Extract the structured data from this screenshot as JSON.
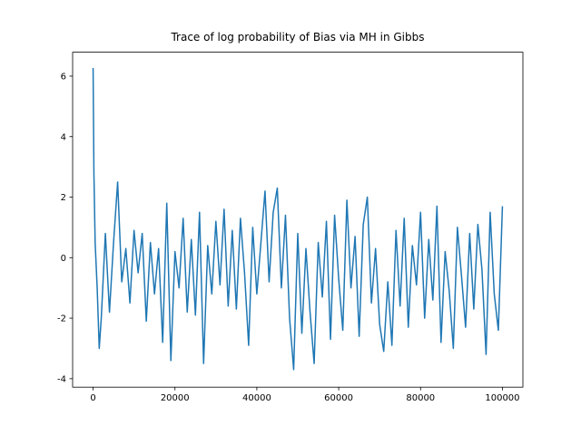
{
  "chart_data": {
    "type": "line",
    "title": "Trace of log probability of Bias via MH in Gibbs",
    "x": [
      0,
      200,
      500,
      1000,
      1500,
      2000,
      3000,
      4000,
      5000,
      6000,
      7000,
      8000,
      9000,
      10000,
      11000,
      12000,
      13000,
      14000,
      15000,
      16000,
      17000,
      18000,
      19000,
      20000,
      21000,
      22000,
      23000,
      24000,
      25000,
      26000,
      27000,
      28000,
      29000,
      30000,
      31000,
      32000,
      33000,
      34000,
      35000,
      36000,
      37000,
      38000,
      39000,
      40000,
      41000,
      42000,
      43000,
      44000,
      45000,
      46000,
      47000,
      48000,
      49000,
      50000,
      51000,
      52000,
      53000,
      54000,
      55000,
      56000,
      57000,
      58000,
      59000,
      60000,
      61000,
      62000,
      63000,
      64000,
      65000,
      66000,
      67000,
      68000,
      69000,
      70000,
      71000,
      72000,
      73000,
      74000,
      75000,
      76000,
      77000,
      78000,
      79000,
      80000,
      81000,
      82000,
      83000,
      84000,
      85000,
      86000,
      87000,
      88000,
      89000,
      90000,
      91000,
      92000,
      93000,
      94000,
      95000,
      96000,
      97000,
      98000,
      99000,
      100000
    ],
    "values": [
      6.27,
      2.8,
      0.5,
      -1.0,
      -3.0,
      -2.0,
      0.8,
      -1.8,
      0.5,
      2.5,
      -0.8,
      0.3,
      -1.5,
      0.9,
      -0.5,
      0.8,
      -2.1,
      0.5,
      -1.2,
      0.3,
      -2.8,
      1.8,
      -3.4,
      0.2,
      -1.0,
      1.3,
      -1.8,
      0.6,
      -1.9,
      1.5,
      -3.5,
      0.4,
      -1.2,
      1.2,
      -0.9,
      1.6,
      -1.6,
      0.9,
      -1.7,
      1.3,
      -0.5,
      -2.9,
      1.0,
      -1.2,
      0.5,
      2.2,
      -0.8,
      1.5,
      2.3,
      -1.0,
      1.4,
      -2.0,
      -3.7,
      0.8,
      -2.5,
      0.3,
      -1.8,
      -3.5,
      0.5,
      -1.3,
      1.2,
      -2.7,
      1.4,
      -0.7,
      -2.4,
      1.9,
      -1.0,
      0.7,
      -2.6,
      1.1,
      2.0,
      -1.5,
      0.3,
      -2.2,
      -3.1,
      -0.8,
      -2.9,
      0.9,
      -1.6,
      1.3,
      -2.3,
      0.4,
      -0.9,
      1.5,
      -2.0,
      0.6,
      -1.4,
      1.7,
      -2.8,
      0.2,
      -1.1,
      -3.0,
      1.0,
      -0.6,
      -2.3,
      0.8,
      -1.7,
      1.1,
      -0.4,
      -3.2,
      1.5,
      -1.2,
      -2.4,
      1.7
    ],
    "color": "#1f77b4",
    "xlim": [
      -5000,
      105000
    ],
    "ylim": [
      -4.28,
      6.79
    ],
    "xticks": [
      0,
      20000,
      40000,
      60000,
      80000,
      100000
    ],
    "yticks": [
      -4,
      -2,
      0,
      2,
      4,
      6
    ]
  }
}
